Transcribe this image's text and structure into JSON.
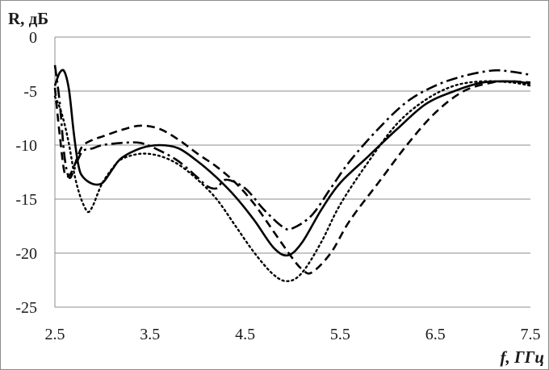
{
  "chart_data": {
    "type": "line",
    "title": "",
    "xlabel": "f, ГГц",
    "ylabel": "R, дБ",
    "xlim": [
      2.5,
      7.5
    ],
    "ylim": [
      -25,
      0
    ],
    "xticks": [
      "2.5",
      "3.5",
      "4.5",
      "5.5",
      "6.5",
      "7.5"
    ],
    "yticks": [
      "0",
      "-5",
      "-10",
      "-15",
      "-20",
      "-25"
    ],
    "grid": "horizontal",
    "legend": "none",
    "series": [
      {
        "style": "solid",
        "color": "#000000",
        "x": [
          2.5,
          2.55,
          2.6,
          2.65,
          2.7,
          2.75,
          2.8,
          2.9,
          3.0,
          3.1,
          3.2,
          3.4,
          3.6,
          3.8,
          4.0,
          4.2,
          4.4,
          4.6,
          4.8,
          4.95,
          5.1,
          5.3,
          5.5,
          5.8,
          6.1,
          6.4,
          6.7,
          7.0,
          7.3,
          7.5
        ],
        "y": [
          -4.5,
          -3.3,
          -3.2,
          -5.0,
          -9.0,
          -12.0,
          -13.0,
          -13.6,
          -13.5,
          -12.3,
          -11.2,
          -10.3,
          -10.0,
          -10.3,
          -11.5,
          -13.0,
          -14.8,
          -17.0,
          -19.5,
          -20.2,
          -19.0,
          -16.0,
          -13.5,
          -11.0,
          -8.5,
          -6.2,
          -5.0,
          -4.2,
          -4.1,
          -4.3
        ]
      },
      {
        "style": "dashed",
        "color": "#000000",
        "x": [
          2.5,
          2.55,
          2.6,
          2.65,
          2.7,
          2.75,
          2.8,
          2.9,
          3.0,
          3.2,
          3.4,
          3.6,
          3.8,
          4.0,
          4.2,
          4.4,
          4.6,
          4.8,
          5.0,
          5.1,
          5.2,
          5.4,
          5.6,
          5.9,
          6.2,
          6.5,
          6.8,
          7.1,
          7.3,
          7.5
        ],
        "y": [
          -4.7,
          -9.0,
          -12.5,
          -12.8,
          -12.0,
          -10.8,
          -10.0,
          -9.5,
          -9.2,
          -8.6,
          -8.2,
          -8.5,
          -9.5,
          -10.8,
          -12.0,
          -13.5,
          -15.5,
          -18.0,
          -20.5,
          -21.5,
          -21.8,
          -20.0,
          -17.0,
          -13.5,
          -10.0,
          -7.0,
          -5.0,
          -4.2,
          -4.1,
          -4.2
        ]
      },
      {
        "style": "dotted",
        "color": "#000000",
        "x": [
          2.5,
          2.55,
          2.6,
          2.65,
          2.7,
          2.75,
          2.8,
          2.85,
          2.9,
          2.95,
          3.0,
          3.1,
          3.2,
          3.4,
          3.6,
          3.8,
          4.0,
          4.2,
          4.4,
          4.6,
          4.8,
          4.95,
          5.1,
          5.3,
          5.5,
          5.8,
          6.1,
          6.4,
          6.7,
          7.0,
          7.3,
          7.5
        ],
        "y": [
          -5.5,
          -6.5,
          -8.0,
          -10.0,
          -12.5,
          -14.3,
          -15.5,
          -16.2,
          -15.6,
          -14.5,
          -13.5,
          -12.2,
          -11.3,
          -10.8,
          -11.0,
          -11.8,
          -13.2,
          -15.0,
          -17.5,
          -20.0,
          -22.0,
          -22.6,
          -21.8,
          -19.0,
          -15.5,
          -11.5,
          -8.0,
          -5.8,
          -4.5,
          -4.1,
          -4.2,
          -4.5
        ]
      },
      {
        "style": "dash-dot",
        "color": "#000000",
        "x": [
          2.5,
          2.55,
          2.6,
          2.65,
          2.7,
          2.75,
          2.8,
          2.9,
          3.0,
          3.2,
          3.4,
          3.6,
          3.8,
          4.0,
          4.1,
          4.2,
          4.3,
          4.5,
          4.7,
          4.9,
          5.0,
          5.2,
          5.4,
          5.6,
          5.9,
          6.2,
          6.5,
          6.8,
          7.1,
          7.3,
          7.5
        ],
        "y": [
          -2.6,
          -6.0,
          -11.0,
          -13.0,
          -12.3,
          -11.2,
          -10.5,
          -10.3,
          -10.0,
          -9.8,
          -9.8,
          -10.5,
          -11.5,
          -13.0,
          -13.8,
          -14.0,
          -13.2,
          -14.0,
          -16.0,
          -17.6,
          -17.7,
          -16.5,
          -14.0,
          -11.5,
          -8.5,
          -6.0,
          -4.5,
          -3.6,
          -3.1,
          -3.2,
          -3.5
        ]
      }
    ]
  }
}
